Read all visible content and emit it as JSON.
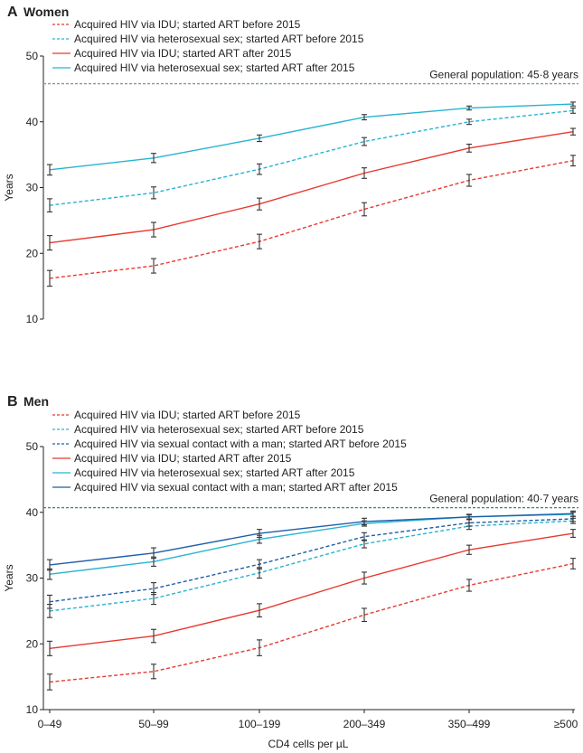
{
  "chart_data": [
    {
      "type": "line",
      "panel_letter": "A",
      "title": "Women",
      "ylabel": "Years",
      "xlabel": "",
      "ylim": [
        10,
        50
      ],
      "yticks": [
        10,
        20,
        30,
        40,
        50
      ],
      "categories": [
        "0–49",
        "50–99",
        "100–199",
        "200–349",
        "350–499",
        "≥500"
      ],
      "reference": {
        "label": "General population: 45·8 years",
        "value": 45.8,
        "color": "#7f9aa6"
      },
      "grid": false,
      "legend_placement": "top-left",
      "series": [
        {
          "name": "Acquired HIV via IDU; started ART before 2015",
          "color": "#e8392f",
          "dashed": true,
          "values": [
            16.2,
            18.1,
            21.8,
            26.7,
            31.1,
            34.1
          ],
          "ci": [
            1.2,
            1.1,
            1.1,
            1.0,
            0.9,
            0.8
          ]
        },
        {
          "name": "Acquired HIV via heterosexual sex; started ART before 2015",
          "color": "#27b3d1",
          "dashed": true,
          "values": [
            27.3,
            29.2,
            32.8,
            37.0,
            40.0,
            41.7
          ],
          "ci": [
            1.0,
            0.9,
            0.8,
            0.6,
            0.4,
            0.4
          ]
        },
        {
          "name": "Acquired HIV via IDU; started ART after 2015",
          "color": "#e8392f",
          "dashed": false,
          "values": [
            21.6,
            23.6,
            27.5,
            32.2,
            36.0,
            38.5
          ],
          "ci": [
            1.1,
            1.1,
            0.9,
            0.8,
            0.6,
            0.5
          ]
        },
        {
          "name": "Acquired HIV via heterosexual sex; started ART after 2015",
          "color": "#27b3d1",
          "dashed": false,
          "values": [
            32.7,
            34.5,
            37.5,
            40.7,
            42.1,
            42.7
          ],
          "ci": [
            0.8,
            0.7,
            0.5,
            0.4,
            0.3,
            0.3
          ]
        }
      ]
    },
    {
      "type": "line",
      "panel_letter": "B",
      "title": "Men",
      "ylabel": "Years",
      "xlabel": "CD4 cells per µL",
      "ylim": [
        10,
        50
      ],
      "yticks": [
        10,
        20,
        30,
        40,
        50
      ],
      "categories": [
        "0–49",
        "50–99",
        "100–199",
        "200–349",
        "350–499",
        "≥500"
      ],
      "reference": {
        "label": "General population: 40·7 years",
        "value": 40.7,
        "color": "#4f7c90"
      },
      "grid": false,
      "legend_placement": "top-left",
      "series": [
        {
          "name": "Acquired HIV via IDU; started ART before 2015",
          "color": "#e8392f",
          "dashed": true,
          "values": [
            14.2,
            15.8,
            19.4,
            24.4,
            28.9,
            32.2
          ],
          "ci": [
            1.2,
            1.1,
            1.2,
            1.0,
            0.9,
            0.8
          ]
        },
        {
          "name": "Acquired HIV via heterosexual sex; started ART before 2015",
          "color": "#27b3d1",
          "dashed": true,
          "values": [
            25.0,
            26.9,
            30.8,
            35.2,
            37.9,
            38.7
          ],
          "ci": [
            1.0,
            0.9,
            0.8,
            0.6,
            0.5,
            0.4
          ]
        },
        {
          "name": "Acquired HIV via sexual contact with a man; started ART before 2015",
          "color": "#1f5ea8",
          "dashed": true,
          "values": [
            26.4,
            28.4,
            32.1,
            36.3,
            38.4,
            39.0
          ],
          "ci": [
            1.0,
            0.9,
            0.7,
            0.6,
            0.5,
            0.4
          ]
        },
        {
          "name": "Acquired HIV via IDU; started ART after 2015",
          "color": "#e8392f",
          "dashed": false,
          "values": [
            19.3,
            21.2,
            25.1,
            30.0,
            34.3,
            36.8
          ],
          "ci": [
            1.1,
            1.0,
            1.0,
            0.9,
            0.7,
            0.6
          ]
        },
        {
          "name": "Acquired HIV via heterosexual sex; started ART after 2015",
          "color": "#27b3d1",
          "dashed": false,
          "values": [
            30.6,
            32.5,
            35.9,
            38.3,
            39.3,
            39.7
          ],
          "ci": [
            0.8,
            0.7,
            0.6,
            0.4,
            0.3,
            0.3
          ]
        },
        {
          "name": "Acquired HIV via sexual contact with a man; started ART after 2015",
          "color": "#1f5ea8",
          "dashed": false,
          "values": [
            32.0,
            33.8,
            36.8,
            38.6,
            39.3,
            39.8
          ],
          "ci": [
            0.8,
            0.8,
            0.6,
            0.5,
            0.4,
            0.4
          ]
        }
      ]
    }
  ]
}
